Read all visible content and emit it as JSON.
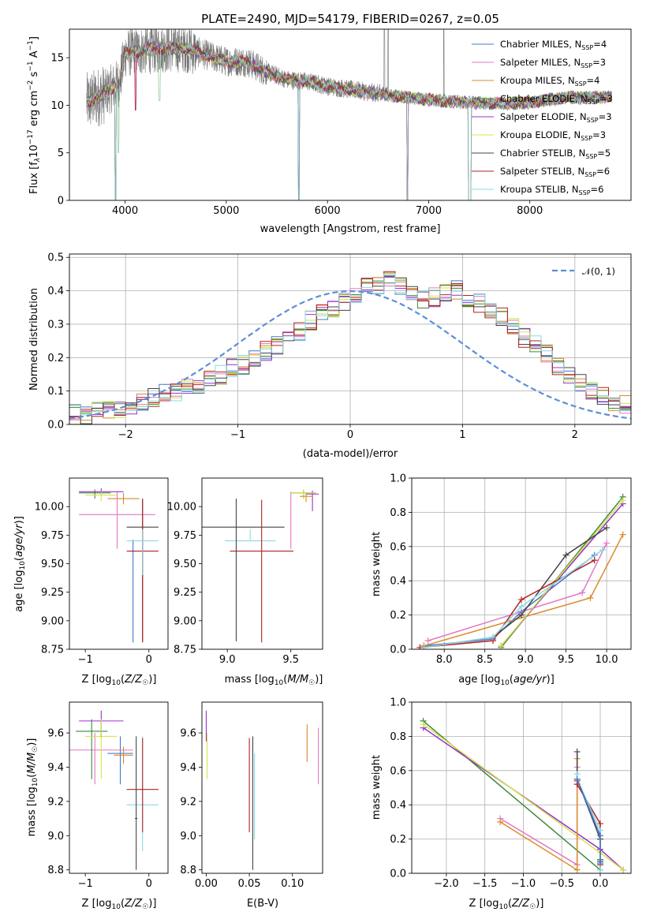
{
  "chart_data": [
    {
      "type": "line",
      "title": "PLATE=2490, MJD=54179, FIBERID=0267, z=0.05",
      "xlabel": "wavelength [Angstrom, rest frame]",
      "ylabel": "Flux [f_λ 10^-17 erg cm^-2 s^-1 A^-1]",
      "xlim": [
        3450,
        9000
      ],
      "ylim": [
        0,
        18
      ],
      "xticks": [
        4000,
        5000,
        6000,
        7000,
        8000
      ],
      "yticks": [
        0,
        5,
        10,
        15
      ],
      "legend_position": "top-right",
      "series": [
        {
          "name": "Chabrier MILES, N_SSP=4",
          "legend_base": "Chabrier MILES, N",
          "legend_sub": "SSP",
          "legend_tail": "=4",
          "color": "#4477cc"
        },
        {
          "name": "Salpeter MILES, N_SSP=3",
          "legend_base": "Salpeter MILES, N",
          "legend_sub": "SSP",
          "legend_tail": "=3",
          "color": "#e377c2"
        },
        {
          "name": "Kroupa MILES, N_SSP=4",
          "legend_base": "Kroupa MILES, N",
          "legend_sub": "SSP",
          "legend_tail": "=4",
          "color": "#d98b2b"
        },
        {
          "name": "Chabrier ELODIE, N_SSP=3",
          "legend_base": "Chabrier ELODIE, N",
          "legend_sub": "SSP",
          "legend_tail": "=3",
          "color": "#3a8a3a"
        },
        {
          "name": "Salpeter ELODIE, N_SSP=3",
          "legend_base": "Salpeter ELODIE, N",
          "legend_sub": "SSP",
          "legend_tail": "=3",
          "color": "#9932cc"
        },
        {
          "name": "Kroupa ELODIE, N_SSP=3",
          "legend_base": "Kroupa ELODIE, N",
          "legend_sub": "SSP",
          "legend_tail": "=3",
          "color": "#d4e44a"
        },
        {
          "name": "Chabrier STELIB, N_SSP=5",
          "legend_base": "Chabrier STELIB, N",
          "legend_sub": "SSP",
          "legend_tail": "=5",
          "color": "#444444"
        },
        {
          "name": "Salpeter STELIB, N_SSP=6",
          "legend_base": "Salpeter STELIB, N",
          "legend_sub": "SSP",
          "legend_tail": "=6",
          "color": "#b22222"
        },
        {
          "name": "Kroupa STELIB, N_SSP=6",
          "legend_base": "Kroupa STELIB, N",
          "legend_sub": "SSP",
          "legend_tail": "=6",
          "color": "#8dd8e0"
        }
      ],
      "data_spectrum": {
        "color": "#777777",
        "wave_range": [
          3620,
          8810
        ]
      },
      "model_flux_anchors": [
        [
          3620,
          10.3
        ],
        [
          3800,
          11.2
        ],
        [
          3950,
          12.5
        ],
        [
          4000,
          15.5
        ],
        [
          4100,
          15.6
        ],
        [
          4200,
          15.8
        ],
        [
          4400,
          16.0
        ],
        [
          4600,
          16.0
        ],
        [
          4800,
          15.3
        ],
        [
          5000,
          14.6
        ],
        [
          5200,
          14.6
        ],
        [
          5400,
          13.5
        ],
        [
          5600,
          12.7
        ],
        [
          5800,
          12.5
        ],
        [
          6000,
          12.0
        ],
        [
          6200,
          11.7
        ],
        [
          6400,
          11.4
        ],
        [
          6600,
          11.1
        ],
        [
          6800,
          10.8
        ],
        [
          7000,
          10.6
        ],
        [
          7200,
          10.4
        ],
        [
          7400,
          10.3
        ],
        [
          7600,
          10.2
        ],
        [
          7800,
          10.2
        ],
        [
          8000,
          10.3
        ],
        [
          8200,
          10.6
        ],
        [
          8400,
          10.8
        ],
        [
          8600,
          10.8
        ],
        [
          8810,
          10.9
        ]
      ],
      "absorption_dips": [
        [
          3905,
          0
        ],
        [
          3935,
          5
        ],
        [
          4102,
          9.5
        ],
        [
          4340,
          10.5
        ],
        [
          5715,
          0
        ],
        [
          6790,
          0
        ],
        [
          7400,
          0
        ],
        [
          7415,
          0
        ]
      ]
    },
    {
      "type": "step",
      "xlabel": "(data-model)/error",
      "ylabel": "Normed distribution",
      "xlim": [
        -2.5,
        2.5
      ],
      "ylim": [
        0,
        0.51
      ],
      "xticks": [
        -2,
        -1,
        0,
        1,
        2
      ],
      "yticks": [
        0.0,
        0.1,
        0.2,
        0.3,
        0.4,
        0.5
      ],
      "grid": true,
      "legend_position": "top-right",
      "reference": {
        "label": "𝒩(0, 1)",
        "mean": 0,
        "sigma": 1,
        "color": "#5b8fd6",
        "style": "dashed"
      },
      "bin_width": 0.1,
      "bin_start": -2.5,
      "series_base": [
        0.03,
        0.03,
        0.04,
        0.04,
        0.05,
        0.06,
        0.07,
        0.08,
        0.09,
        0.1,
        0.11,
        0.12,
        0.14,
        0.15,
        0.17,
        0.18,
        0.2,
        0.22,
        0.24,
        0.26,
        0.28,
        0.31,
        0.33,
        0.35,
        0.37,
        0.39,
        0.41,
        0.42,
        0.43,
        0.41,
        0.39,
        0.37,
        0.38,
        0.39,
        0.4,
        0.37,
        0.36,
        0.34,
        0.32,
        0.29,
        0.26,
        0.24,
        0.21,
        0.17,
        0.14,
        0.12,
        0.1,
        0.09,
        0.07,
        0.06,
        0.05,
        0.05,
        0.04,
        0.04,
        0.03,
        0.03,
        0.03
      ]
    },
    {
      "type": "scatter_errorbars",
      "xlabel": "Z [log10(Z/Z☉)]",
      "ylabel": "age [log10(age/yr)]",
      "xlim": [
        -1.25,
        0.3
      ],
      "ylim": [
        8.75,
        10.25
      ],
      "xticks": [
        -1,
        0
      ],
      "yticks": [
        8.75,
        9.0,
        9.25,
        9.5,
        9.75,
        10.0
      ],
      "points": [
        {
          "x": -0.25,
          "y": 9.61,
          "xerr": 0.05,
          "yerr": [
            0.8,
            0.1
          ],
          "series": 0
        },
        {
          "x": -0.5,
          "y": 9.93,
          "xerr": 0.6,
          "yerr": [
            0.3,
            0.2
          ],
          "series": 1
        },
        {
          "x": -0.4,
          "y": 10.07,
          "xerr": 0.25,
          "yerr": [
            0.05,
            0.05
          ],
          "series": 2
        },
        {
          "x": -0.85,
          "y": 10.12,
          "xerr": 0.25,
          "yerr": [
            0.05,
            0.03
          ],
          "series": 3
        },
        {
          "x": -0.75,
          "y": 10.13,
          "xerr": 0.35,
          "yerr": [
            0.03,
            0.03
          ],
          "series": 4
        },
        {
          "x": -0.75,
          "y": 10.1,
          "xerr": 0.25,
          "yerr": [
            0.05,
            0.03
          ],
          "series": 5
        },
        {
          "x": -0.1,
          "y": 9.82,
          "xerr": 0.25,
          "yerr": [
            1.0,
            0.25
          ],
          "series": 6
        },
        {
          "x": -0.1,
          "y": 9.61,
          "xerr": 0.25,
          "yerr": [
            0.8,
            0.45
          ],
          "series": 7
        },
        {
          "x": -0.1,
          "y": 9.7,
          "xerr": 0.25,
          "yerr": [
            0.3,
            0.1
          ],
          "series": 8
        }
      ]
    },
    {
      "type": "scatter_errorbars",
      "xlabel": "mass [log10(M/M☉)]",
      "xlim": [
        8.8,
        9.75
      ],
      "ylim": [
        8.75,
        10.25
      ],
      "xticks": [
        9.0,
        9.5
      ],
      "yticks": [
        8.75,
        9.0,
        9.25,
        9.5,
        9.75,
        10.0
      ],
      "points": [
        {
          "x": 9.18,
          "y": 9.7,
          "xerr": 0.2,
          "yerr": [
            0.0,
            0.1
          ],
          "series": 8
        },
        {
          "x": 9.27,
          "y": 9.61,
          "xerr": 0.25,
          "yerr": [
            0.8,
            0.45
          ],
          "series": 7
        },
        {
          "x": 9.07,
          "y": 9.82,
          "xerr": 0.38,
          "yerr": [
            1.0,
            0.25
          ],
          "series": 6
        },
        {
          "x": 9.5,
          "y": 9.93,
          "xerr": 0.0,
          "yerr": [
            0.3,
            0.2
          ],
          "series": 1
        },
        {
          "x": 9.6,
          "y": 10.12,
          "xerr": 0.1,
          "yerr": [
            0.05,
            0.03
          ],
          "series": 3
        },
        {
          "x": 9.67,
          "y": 10.11,
          "xerr": 0.05,
          "yerr": [
            0.15,
            0.03
          ],
          "series": 4
        },
        {
          "x": 9.6,
          "y": 10.12,
          "xerr": 0.1,
          "yerr": [
            0.05,
            0.03
          ],
          "series": 5
        },
        {
          "x": 9.62,
          "y": 10.09,
          "xerr": 0.05,
          "yerr": [
            0.05,
            0.03
          ],
          "series": 2
        }
      ]
    },
    {
      "type": "line",
      "xlabel": "age [log10(age/yr)]",
      "ylabel": "mass weight",
      "xlim": [
        7.6,
        10.3
      ],
      "ylim": [
        0,
        1
      ],
      "xticks": [
        8.0,
        8.5,
        9.0,
        9.5,
        10.0
      ],
      "yticks": [
        0.0,
        0.2,
        0.4,
        0.6,
        0.8,
        1.0
      ],
      "grid": true,
      "lines": [
        {
          "series": 0,
          "x": [
            7.75,
            8.6,
            8.95,
            9.85
          ],
          "y": [
            0.02,
            0.06,
            0.22,
            0.55
          ]
        },
        {
          "series": 1,
          "x": [
            7.8,
            9.7,
            10.0
          ],
          "y": [
            0.05,
            0.33,
            0.62
          ]
        },
        {
          "series": 2,
          "x": [
            7.75,
            9.8,
            10.2
          ],
          "y": [
            0.02,
            0.3,
            0.67
          ]
        },
        {
          "series": 3,
          "x": [
            8.7,
            10.2
          ],
          "y": [
            0.01,
            0.89
          ]
        },
        {
          "series": 4,
          "x": [
            8.7,
            10.2
          ],
          "y": [
            0.02,
            0.85
          ]
        },
        {
          "series": 5,
          "x": [
            8.7,
            10.2
          ],
          "y": [
            0.02,
            0.87
          ]
        },
        {
          "series": 6,
          "x": [
            7.75,
            8.6,
            8.95,
            9.5,
            10.0
          ],
          "y": [
            0.01,
            0.07,
            0.2,
            0.55,
            0.71
          ]
        },
        {
          "series": 7,
          "x": [
            7.7,
            8.6,
            8.95,
            9.85
          ],
          "y": [
            0.01,
            0.05,
            0.29,
            0.52
          ]
        },
        {
          "series": 8,
          "x": [
            7.75,
            8.6,
            8.95,
            9.95
          ],
          "y": [
            0.01,
            0.07,
            0.25,
            0.58
          ]
        }
      ]
    },
    {
      "type": "scatter_errorbars",
      "xlabel": "Z [log10(Z/Z☉)]",
      "ylabel": "mass [log10(M/M☉)]",
      "xlim": [
        -1.25,
        0.3
      ],
      "ylim": [
        8.78,
        9.78
      ],
      "xticks": [
        -1,
        0
      ],
      "yticks": [
        8.8,
        9.0,
        9.2,
        9.4,
        9.6
      ],
      "points": [
        {
          "x": -0.1,
          "y": 9.18,
          "xerr": 0.25,
          "yerr": [
            0.27,
            0.4
          ],
          "series": 8
        },
        {
          "x": -0.1,
          "y": 9.27,
          "xerr": 0.25,
          "yerr": [
            0.25,
            0.3
          ],
          "series": 7
        },
        {
          "x": -0.2,
          "y": 9.1,
          "xerr": 0.02,
          "yerr": [
            0.3,
            0.48
          ],
          "series": 6
        },
        {
          "x": -0.45,
          "y": 9.48,
          "xerr": 0.2,
          "yerr": [
            0.18,
            0.1
          ],
          "series": 0
        },
        {
          "x": -0.85,
          "y": 9.5,
          "xerr": 0.6,
          "yerr": [
            0.2,
            0.1
          ],
          "series": 1
        },
        {
          "x": -0.4,
          "y": 9.47,
          "xerr": 0.15,
          "yerr": [
            0.05,
            0.05
          ],
          "series": 2
        },
        {
          "x": -0.9,
          "y": 9.61,
          "xerr": 0.25,
          "yerr": [
            0.28,
            0.07
          ],
          "series": 3
        },
        {
          "x": -0.75,
          "y": 9.67,
          "xerr": 0.35,
          "yerr": [
            0.1,
            0.06
          ],
          "series": 4
        },
        {
          "x": -0.75,
          "y": 9.58,
          "xerr": 0.25,
          "yerr": [
            0.25,
            0.1
          ],
          "series": 5
        }
      ]
    },
    {
      "type": "scatter_errorbars",
      "xlabel": "E(B-V)",
      "xlim": [
        -0.005,
        0.135
      ],
      "ylim": [
        8.78,
        9.78
      ],
      "xticks": [
        0.0,
        0.05,
        0.1
      ],
      "yticks": [
        8.8,
        9.0,
        9.2,
        9.4,
        9.6
      ],
      "points": [
        {
          "x": 0.0,
          "y": 9.65,
          "yerr": [
            0.1,
            0.08
          ],
          "series": 4
        },
        {
          "x": 0.001,
          "y": 9.45,
          "yerr": [
            0.12,
            0.15
          ],
          "series": 5
        },
        {
          "x": 0.05,
          "y": 9.27,
          "yerr": [
            0.25,
            0.3
          ],
          "series": 7
        },
        {
          "x": 0.054,
          "y": 9.1,
          "yerr": [
            0.3,
            0.48
          ],
          "series": 6
        },
        {
          "x": 0.056,
          "y": 9.18,
          "yerr": [
            0.2,
            0.3
          ],
          "series": 8
        },
        {
          "x": 0.117,
          "y": 9.55,
          "yerr": [
            0.12,
            0.1
          ],
          "series": 2
        },
        {
          "x": 0.13,
          "y": 9.5,
          "yerr": [
            0.2,
            0.13
          ],
          "series": 1
        }
      ]
    },
    {
      "type": "line",
      "xlabel": "Z [log10(Z/Z☉)]",
      "ylabel": "mass weight",
      "xlim": [
        -2.45,
        0.4
      ],
      "ylim": [
        0,
        1
      ],
      "xticks": [
        -2.0,
        -1.5,
        -1.0,
        -0.5,
        0.0
      ],
      "yticks": [
        0.0,
        0.2,
        0.4,
        0.6,
        0.8,
        1.0
      ],
      "grid": true,
      "lines": [
        {
          "series": 3,
          "x": [
            -2.3,
            0.0,
            0.0
          ],
          "y": [
            0.89,
            0.02,
            0.08
          ]
        },
        {
          "series": 4,
          "x": [
            -2.3,
            0.0,
            0.3
          ],
          "y": [
            0.85,
            0.14,
            0.02
          ]
        },
        {
          "series": 5,
          "x": [
            -2.3,
            0.0,
            0.3
          ],
          "y": [
            0.87,
            0.12,
            0.02
          ]
        },
        {
          "series": 1,
          "x": [
            -1.3,
            -0.3,
            -0.3
          ],
          "y": [
            0.32,
            0.05,
            0.62
          ]
        },
        {
          "series": 2,
          "x": [
            -1.3,
            -0.3,
            -0.3
          ],
          "y": [
            0.3,
            0.02,
            0.67
          ]
        },
        {
          "series": 6,
          "x": [
            -0.3,
            -0.3,
            0.0,
            0.0
          ],
          "y": [
            0.71,
            0.55,
            0.2,
            0.07
          ]
        },
        {
          "series": 7,
          "x": [
            -0.3,
            -0.3,
            0.0,
            0.0
          ],
          "y": [
            0.54,
            0.52,
            0.29,
            0.05
          ]
        },
        {
          "series": 8,
          "x": [
            -0.3,
            -0.3,
            0.0,
            0.0
          ],
          "y": [
            0.58,
            0.55,
            0.25,
            0.02
          ]
        },
        {
          "series": 0,
          "x": [
            -0.3,
            0.0,
            0.0
          ],
          "y": [
            0.55,
            0.22,
            0.06
          ]
        }
      ]
    }
  ]
}
